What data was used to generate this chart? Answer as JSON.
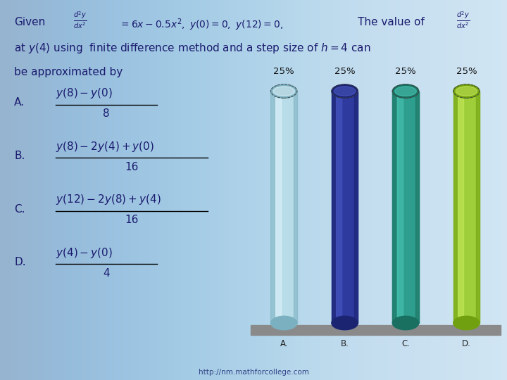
{
  "bar_labels": [
    "A.",
    "B.",
    "C.",
    "D."
  ],
  "bar_values": [
    25,
    25,
    25,
    25
  ],
  "bar_colors": [
    "#b8dce8",
    "#2e3a9e",
    "#2e9e8e",
    "#9ece3a"
  ],
  "bar_colors_dark": [
    "#7ab0c0",
    "#1a2470",
    "#1a7060",
    "#70a010"
  ],
  "bar_colors_light": [
    "#e8f8ff",
    "#5060d0",
    "#50d0c0",
    "#d0f060"
  ],
  "percentage_labels": [
    "25%",
    "25%",
    "25%",
    "25%"
  ],
  "bg_color": "#c5dff0",
  "platform_color": "#8a8a8a",
  "text_color": "#1a1a6e",
  "footer_text": "http://nm.mathforcollege.com"
}
